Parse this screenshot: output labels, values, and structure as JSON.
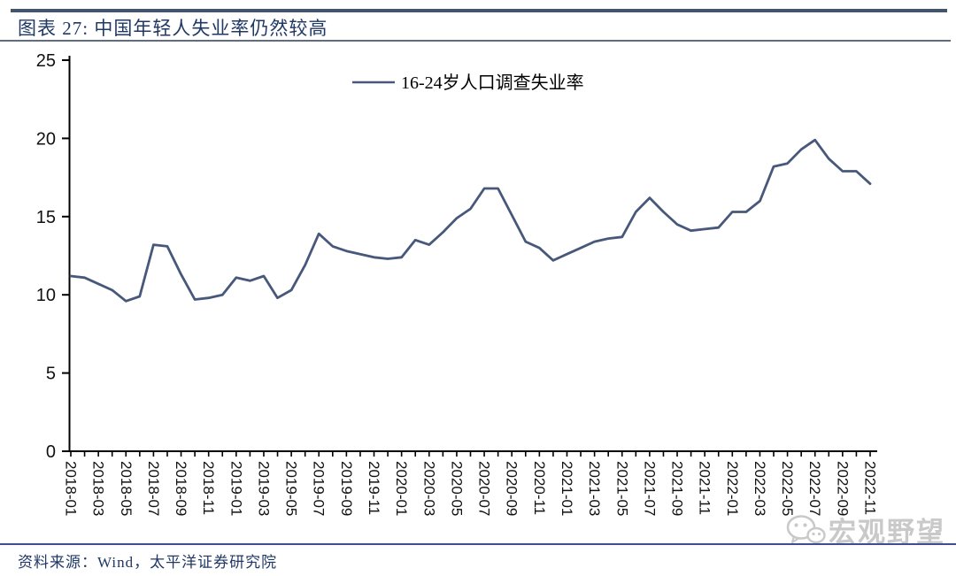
{
  "header": {
    "title": "图表 27:  中国年轻人失业率仍然较高"
  },
  "legend": {
    "series_label": "16-24岁人口调查失业率"
  },
  "footer": {
    "source": "资料来源：Wind，太平洋证券研究院"
  },
  "watermark": {
    "text": "宏观野望",
    "icon": "wechat-icon"
  },
  "colors": {
    "line": "#47587a",
    "title_text": "#1f3864",
    "axis": "#000000",
    "tick_label": "#111111",
    "rule": "#44546a",
    "watermark": "#c9c9c9"
  },
  "chart_data": {
    "type": "line",
    "title": "图表 27: 中国年轻人失业率仍然较高",
    "xlabel": "",
    "ylabel": "",
    "ylim": [
      0,
      25
    ],
    "y_ticks": [
      0,
      5,
      10,
      15,
      20,
      25
    ],
    "grid": false,
    "legend_position": "top-center",
    "series": [
      {
        "name": "16-24岁人口调查失业率",
        "x": [
          "2018-01",
          "2018-02",
          "2018-03",
          "2018-04",
          "2018-05",
          "2018-06",
          "2018-07",
          "2018-08",
          "2018-09",
          "2018-10",
          "2018-11",
          "2018-12",
          "2019-01",
          "2019-02",
          "2019-03",
          "2019-04",
          "2019-05",
          "2019-06",
          "2019-07",
          "2019-08",
          "2019-09",
          "2019-10",
          "2019-11",
          "2019-12",
          "2020-01",
          "2020-02",
          "2020-03",
          "2020-04",
          "2020-05",
          "2020-06",
          "2020-07",
          "2020-08",
          "2020-09",
          "2020-10",
          "2020-11",
          "2020-12",
          "2021-01",
          "2021-02",
          "2021-03",
          "2021-04",
          "2021-05",
          "2021-06",
          "2021-07",
          "2021-08",
          "2021-09",
          "2021-10",
          "2021-11",
          "2021-12",
          "2022-01",
          "2022-02",
          "2022-03",
          "2022-04",
          "2022-05",
          "2022-06",
          "2022-07",
          "2022-08",
          "2022-09",
          "2022-10",
          "2022-11"
        ],
        "values": [
          11.2,
          11.1,
          10.7,
          10.3,
          9.6,
          9.9,
          13.2,
          13.1,
          11.3,
          9.7,
          9.8,
          10.0,
          11.1,
          10.9,
          11.2,
          9.8,
          10.3,
          11.9,
          13.9,
          13.1,
          12.8,
          12.6,
          12.4,
          12.3,
          12.4,
          13.5,
          13.2,
          14.0,
          14.9,
          15.5,
          16.8,
          16.8,
          15.1,
          13.4,
          13.0,
          12.2,
          12.6,
          13.0,
          13.4,
          13.6,
          13.7,
          15.3,
          16.2,
          15.3,
          14.5,
          14.1,
          14.2,
          14.3,
          15.3,
          15.3,
          16.0,
          18.2,
          18.4,
          19.3,
          19.9,
          18.7,
          17.9,
          17.9,
          17.1
        ]
      }
    ],
    "x_tick_labels": [
      "2018-01",
      "2018-03",
      "2018-05",
      "2018-07",
      "2018-09",
      "2018-11",
      "2019-01",
      "2019-03",
      "2019-05",
      "2019-07",
      "2019-09",
      "2019-11",
      "2020-01",
      "2020-03",
      "2020-05",
      "2020-07",
      "2020-09",
      "2020-11",
      "2021-01",
      "2021-03",
      "2021-05",
      "2021-07",
      "2021-09",
      "2021-11",
      "2022-01",
      "2022-03",
      "2022-05",
      "2022-07",
      "2022-09",
      "2022-11"
    ]
  }
}
